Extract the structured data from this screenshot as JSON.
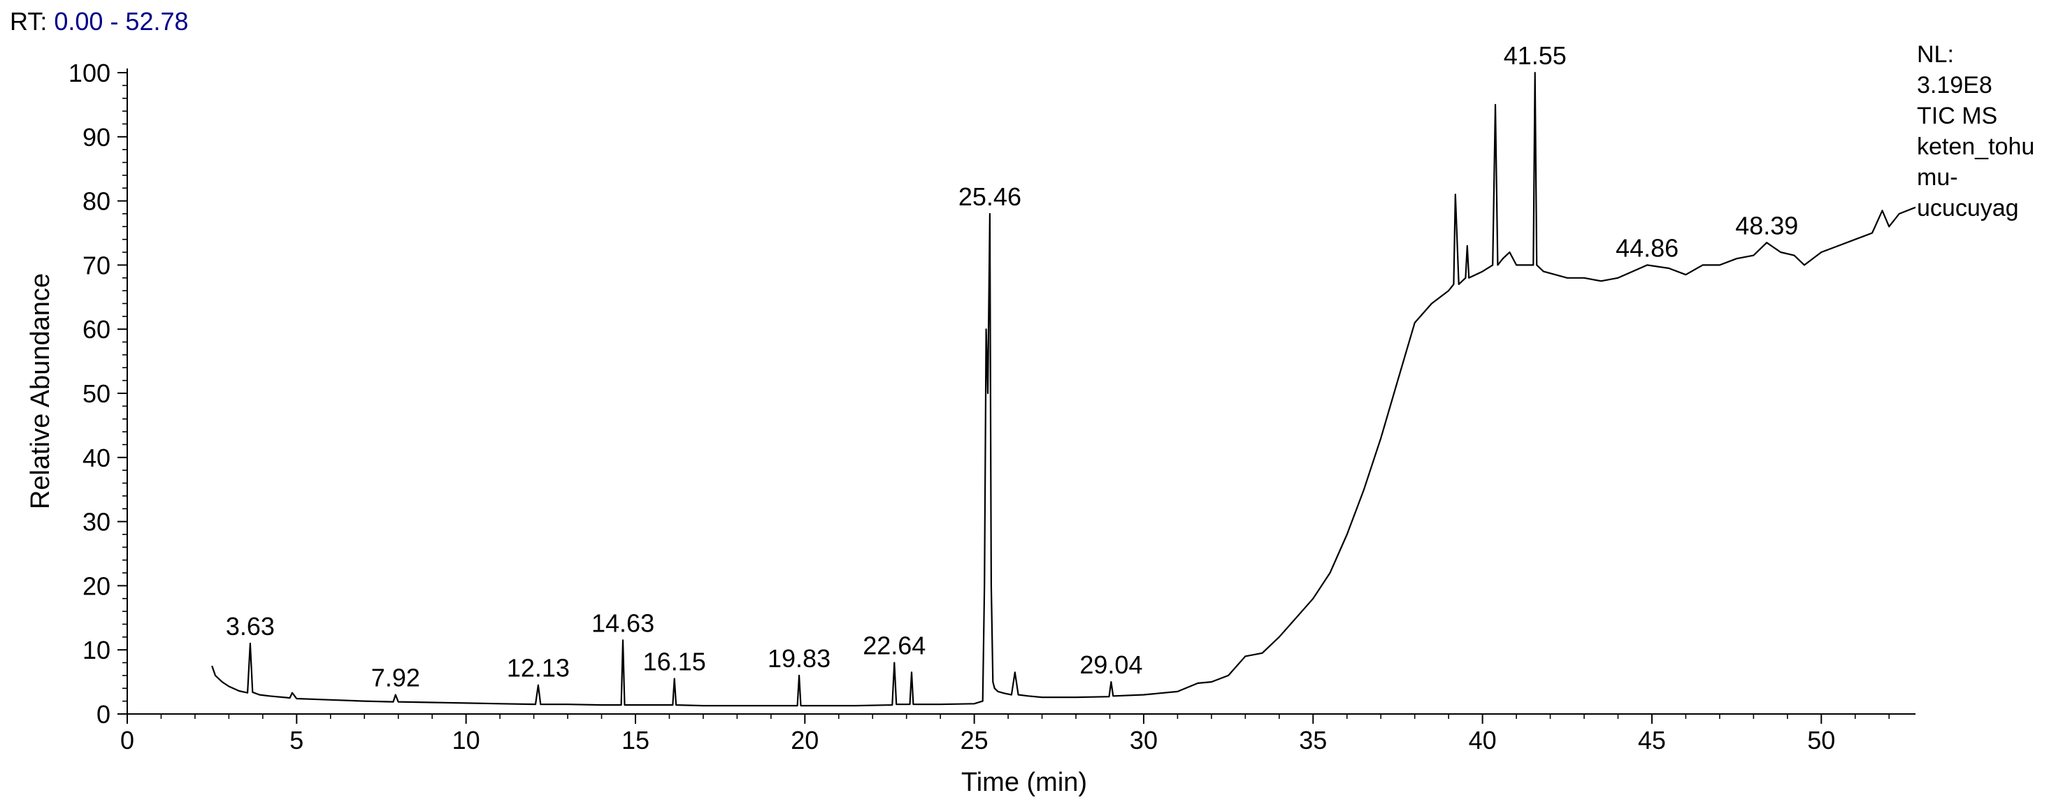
{
  "header": {
    "rt_label": "RT:",
    "rt_range": "0.00 - 52.78",
    "info_lines": [
      "NL:",
      "3.19E8",
      "TIC  MS",
      "keten_tohu",
      "mu-",
      "ucucuyag"
    ]
  },
  "chart_data": {
    "type": "line",
    "title": "",
    "xlabel": "Time (min)",
    "ylabel": "Relative Abundance",
    "xlim": [
      0,
      52.78
    ],
    "ylim": [
      0,
      100
    ],
    "xticks": [
      0,
      5,
      10,
      15,
      20,
      25,
      30,
      35,
      40,
      45,
      50
    ],
    "yticks": [
      0,
      10,
      20,
      30,
      40,
      50,
      60,
      70,
      80,
      90,
      100
    ],
    "grid": false,
    "series": [
      {
        "x": [
          2.5,
          2.6,
          2.8,
          3.0,
          3.3,
          3.55,
          3.63,
          3.7,
          3.9,
          4.2,
          4.8,
          4.87,
          5.0,
          6.0,
          7.0,
          7.85,
          7.92,
          8.0,
          9.0,
          10.0,
          11.0,
          12.05,
          12.13,
          12.2,
          13.0,
          14.0,
          14.58,
          14.63,
          14.68,
          15.0,
          16.1,
          16.15,
          16.2,
          17.0,
          18.0,
          19.0,
          19.78,
          19.83,
          19.88,
          20.5,
          21.5,
          22.58,
          22.64,
          22.7,
          23.1,
          23.15,
          23.2,
          24.0,
          25.0,
          25.25,
          25.3,
          25.35,
          25.4,
          25.46,
          25.5,
          25.55,
          25.6,
          25.7,
          25.9,
          26.1,
          26.2,
          26.3,
          26.6,
          27.0,
          28.0,
          28.98,
          29.04,
          29.1,
          30.0,
          31.0,
          31.6,
          32.0,
          32.5,
          33.0,
          33.5,
          34.0,
          34.5,
          35.0,
          35.5,
          36.0,
          36.5,
          37.0,
          37.5,
          38.0,
          38.5,
          39.0,
          39.15,
          39.2,
          39.3,
          39.5,
          39.55,
          39.6,
          40.0,
          40.3,
          40.38,
          40.45,
          40.6,
          40.8,
          41.0,
          41.3,
          41.5,
          41.55,
          41.6,
          41.8,
          42.5,
          43.0,
          43.5,
          44.0,
          44.86,
          45.5,
          46.0,
          46.5,
          47.0,
          47.5,
          48.0,
          48.39,
          48.8,
          49.2,
          49.5,
          50.0,
          50.5,
          51.0,
          51.5,
          51.8,
          52.0,
          52.3,
          52.78
        ],
        "y": [
          7.5,
          6.0,
          5.0,
          4.3,
          3.6,
          3.3,
          11.0,
          3.4,
          3.0,
          2.8,
          2.5,
          3.3,
          2.4,
          2.2,
          2.0,
          1.9,
          3.0,
          1.9,
          1.8,
          1.7,
          1.6,
          1.5,
          4.5,
          1.5,
          1.5,
          1.4,
          1.4,
          11.5,
          1.4,
          1.4,
          1.4,
          5.5,
          1.4,
          1.3,
          1.3,
          1.3,
          1.3,
          6.0,
          1.3,
          1.3,
          1.3,
          1.4,
          8.0,
          1.5,
          1.5,
          6.5,
          1.5,
          1.5,
          1.6,
          2.0,
          20.0,
          60.0,
          50.0,
          78.0,
          20.0,
          5.0,
          4.0,
          3.5,
          3.2,
          3.0,
          6.5,
          3.0,
          2.8,
          2.6,
          2.6,
          2.7,
          5.0,
          2.8,
          3.0,
          3.5,
          4.8,
          5.0,
          6.0,
          9.0,
          9.5,
          12.0,
          15.0,
          18.0,
          22.0,
          28.0,
          35.0,
          43.0,
          52.0,
          61.0,
          64.0,
          66.0,
          67.0,
          81.0,
          67.0,
          68.0,
          73.0,
          68.0,
          69.0,
          70.0,
          95.0,
          70.0,
          71.0,
          72.0,
          70.0,
          70.0,
          70.0,
          100.0,
          70.0,
          69.0,
          68.0,
          68.0,
          67.5,
          68.0,
          70.0,
          69.5,
          68.5,
          70.0,
          70.0,
          71.0,
          71.5,
          73.5,
          72.0,
          71.5,
          70.0,
          72.0,
          73.0,
          74.0,
          75.0,
          78.5,
          76.0,
          78.0,
          79.0
        ]
      }
    ],
    "peak_labels": [
      {
        "x": 3.63,
        "y": 11.0,
        "text": "3.63"
      },
      {
        "x": 7.92,
        "y": 3.0,
        "text": "7.92"
      },
      {
        "x": 12.13,
        "y": 4.5,
        "text": "12.13"
      },
      {
        "x": 14.63,
        "y": 11.5,
        "text": "14.63"
      },
      {
        "x": 16.15,
        "y": 5.5,
        "text": "16.15"
      },
      {
        "x": 19.83,
        "y": 6.0,
        "text": "19.83"
      },
      {
        "x": 22.64,
        "y": 8.0,
        "text": "22.64"
      },
      {
        "x": 25.46,
        "y": 78.0,
        "text": "25.46"
      },
      {
        "x": 29.04,
        "y": 5.0,
        "text": "29.04"
      },
      {
        "x": 41.55,
        "y": 100.0,
        "text": "41.55"
      },
      {
        "x": 44.86,
        "y": 70.0,
        "text": "44.86"
      },
      {
        "x": 48.39,
        "y": 73.5,
        "text": "48.39"
      }
    ]
  }
}
